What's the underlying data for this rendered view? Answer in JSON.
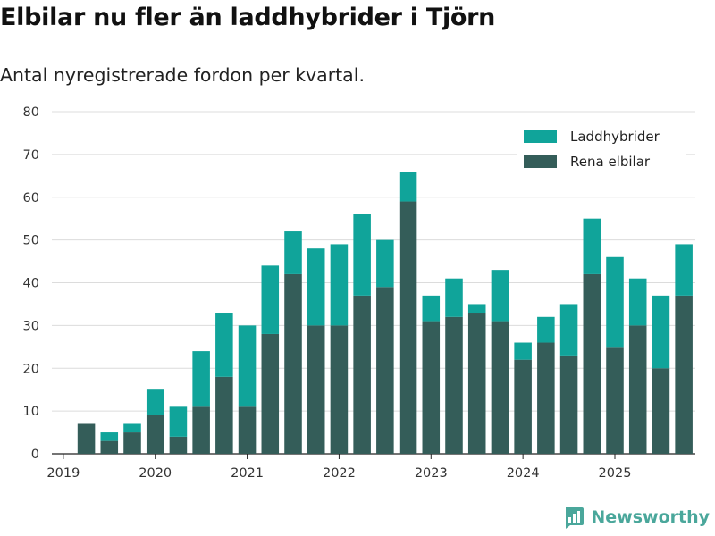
{
  "header": {
    "title": "Elbilar nu fler än laddhybrider i Tjörn",
    "subtitle": "Antal nyregistrerade fordon per kvartal."
  },
  "brand": {
    "name": "Newsworthy",
    "color": "#4aa79b"
  },
  "chart_data": {
    "type": "bar",
    "stacked": true,
    "title": "Elbilar nu fler än laddhybrider i Tjörn",
    "subtitle": "Antal nyregistrerade fordon per kvartal.",
    "xlabel": "",
    "ylabel": "",
    "ylim": [
      0,
      80
    ],
    "yticks": [
      0,
      10,
      20,
      30,
      40,
      50,
      60,
      70,
      80
    ],
    "grid": true,
    "legend_position": "top-right",
    "categories": [
      "2019-Q1",
      "2019-Q2",
      "2019-Q3",
      "2019-Q4",
      "2020-Q1",
      "2020-Q2",
      "2020-Q3",
      "2020-Q4",
      "2021-Q1",
      "2021-Q2",
      "2021-Q3",
      "2021-Q4",
      "2022-Q1",
      "2022-Q2",
      "2022-Q3",
      "2022-Q4",
      "2023-Q1",
      "2023-Q2",
      "2023-Q3",
      "2023-Q4",
      "2024-Q1",
      "2024-Q2",
      "2024-Q3",
      "2024-Q4",
      "2025-Q1",
      "2025-Q2",
      "2025-Q3",
      "2025-Q4"
    ],
    "xtick_labels": [
      "2019",
      "2020",
      "2021",
      "2022",
      "2023",
      "2024",
      "2025"
    ],
    "series": [
      {
        "name": "Rena elbilar",
        "color": "#345d59",
        "values": [
          0,
          7,
          3,
          5,
          9,
          4,
          11,
          18,
          11,
          28,
          42,
          30,
          30,
          37,
          39,
          59,
          31,
          32,
          33,
          31,
          22,
          26,
          23,
          42,
          25,
          30,
          20,
          37
        ]
      },
      {
        "name": "Laddhybrider",
        "color": "#10a49a",
        "values": [
          0,
          0,
          2,
          2,
          6,
          7,
          13,
          15,
          19,
          16,
          10,
          18,
          19,
          19,
          11,
          7,
          6,
          9,
          2,
          12,
          4,
          6,
          12,
          13,
          21,
          11,
          17,
          12
        ]
      }
    ],
    "legend_order": [
      "Laddhybrider",
      "Rena elbilar"
    ]
  }
}
